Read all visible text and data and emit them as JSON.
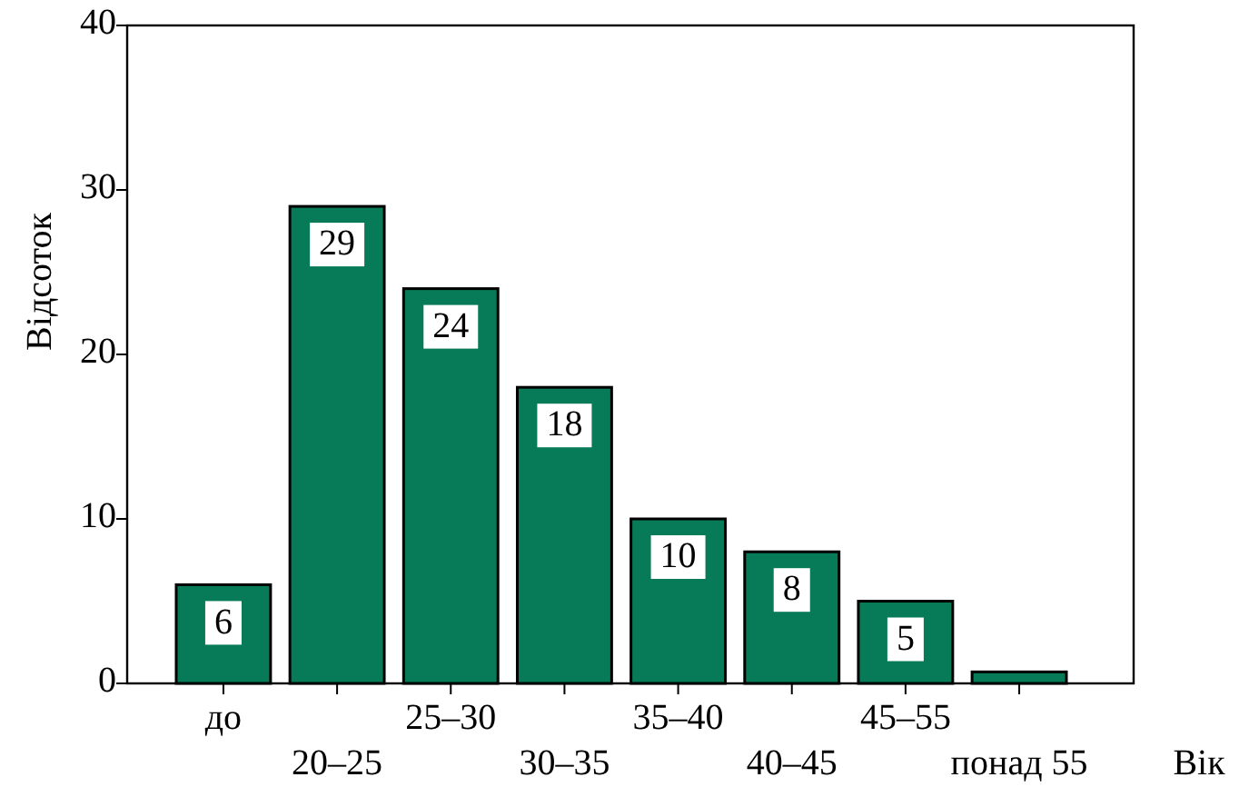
{
  "chart_data": {
    "type": "bar",
    "ylabel": "Відсоток",
    "xlabel": "Вік",
    "categories": [
      "до",
      "20–25",
      "25–30",
      "30–35",
      "35–40",
      "40–45",
      "45–55",
      "понад 55"
    ],
    "values": [
      6,
      29,
      24,
      18,
      10,
      8,
      5,
      0.7
    ],
    "value_labels": [
      "6",
      "29",
      "24",
      "18",
      "10",
      "8",
      "5",
      null
    ],
    "color": "#077a58",
    "ylim": [
      0,
      40
    ],
    "yticks": [
      0,
      10,
      20,
      30,
      40
    ],
    "grid": false
  }
}
